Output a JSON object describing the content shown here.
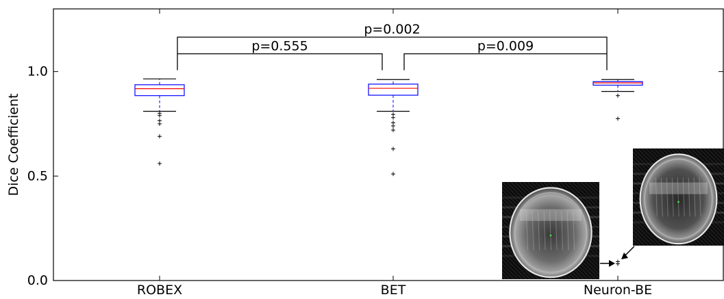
{
  "chart_data": {
    "type": "box",
    "ylabel": "Dice Coefficient",
    "xlabel": "",
    "ylim": [
      0.0,
      1.3
    ],
    "yticks": [
      {
        "value": 0.0,
        "label": "0.0"
      },
      {
        "value": 0.5,
        "label": "0.5"
      },
      {
        "value": 1.0,
        "label": "1.0"
      }
    ],
    "categories": [
      "ROBEX",
      "BET",
      "Neuron-BE"
    ],
    "boxes": [
      {
        "category": "ROBEX",
        "whisker_low": 0.81,
        "q1": 0.885,
        "median": 0.918,
        "q3": 0.937,
        "whisker_high": 0.965,
        "outliers": [
          0.8,
          0.79,
          0.765,
          0.75,
          0.69,
          0.56
        ]
      },
      {
        "category": "BET",
        "whisker_low": 0.81,
        "q1": 0.887,
        "median": 0.92,
        "q3": 0.94,
        "whisker_high": 0.962,
        "outliers": [
          0.795,
          0.78,
          0.755,
          0.74,
          0.72,
          0.63,
          0.51
        ]
      },
      {
        "category": "Neuron-BE",
        "whisker_low": 0.905,
        "q1": 0.935,
        "median": 0.946,
        "q3": 0.952,
        "whisker_high": 0.962,
        "outliers": [
          0.885,
          0.775,
          0.09,
          0.08
        ]
      }
    ],
    "significance": [
      {
        "from": "ROBEX",
        "to": "Neuron-BE",
        "label": "p=0.002",
        "level": 1.165
      },
      {
        "from": "ROBEX",
        "to": "BET",
        "label": "p=0.555",
        "level": 1.085
      },
      {
        "from": "BET",
        "to": "Neuron-BE",
        "label": "p=0.009",
        "level": 1.085
      }
    ],
    "colors": {
      "box": "#0000ff",
      "median": "#ff0000",
      "whisker": "#0000ff",
      "cap": "#000000",
      "outlier": "#000000",
      "axis": "#000000"
    },
    "insets": [
      {
        "name": "brain-scan-left",
        "target": "Neuron-BE"
      },
      {
        "name": "brain-scan-right",
        "target": "Neuron-BE"
      }
    ]
  }
}
